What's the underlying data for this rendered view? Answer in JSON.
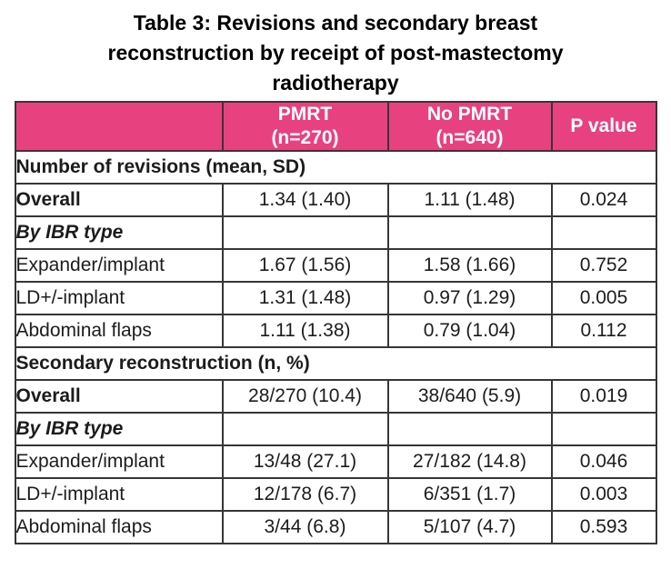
{
  "title_lines": [
    "Table 3: Revisions and secondary breast",
    "reconstruction by receipt of post-mastectomy",
    "radiotherapy"
  ],
  "colors": {
    "header_bg": "#E8417F",
    "header_text": "#FFFFFF",
    "border": "#363636",
    "body_text": "#1C1C1C"
  },
  "table": {
    "header": {
      "row_label_col": "",
      "pmrt_line1": "PMRT",
      "pmrt_line2": "(n=270)",
      "no_pmrt_line1": "No PMRT",
      "no_pmrt_line2": "(n=640)",
      "p_value": "P value"
    },
    "sections": [
      {
        "section_label": "Number of revisions (mean, SD)",
        "rows": [
          {
            "label": "Overall",
            "pmrt": "1.34 (1.40)",
            "no_pmrt": "1.11 (1.48)",
            "p": "0.024"
          },
          {
            "label": "By IBR type",
            "pmrt": "",
            "no_pmrt": "",
            "p": ""
          },
          {
            "label": "Expander/implant",
            "pmrt": "1.67 (1.56)",
            "no_pmrt": "1.58 (1.66)",
            "p": "0.752"
          },
          {
            "label": "LD+/-implant",
            "pmrt": "1.31 (1.48)",
            "no_pmrt": "0.97 (1.29)",
            "p": "0.005"
          },
          {
            "label": "Abdominal flaps",
            "pmrt": "1.11 (1.38)",
            "no_pmrt": "0.79 (1.04)",
            "p": "0.112"
          }
        ]
      },
      {
        "section_label": "Secondary reconstruction (n, %)",
        "rows": [
          {
            "label": "Overall",
            "pmrt": "28/270 (10.4)",
            "no_pmrt": "38/640 (5.9)",
            "p": "0.019"
          },
          {
            "label": "By IBR type",
            "pmrt": "",
            "no_pmrt": "",
            "p": ""
          },
          {
            "label": "Expander/implant",
            "pmrt": "13/48 (27.1)",
            "no_pmrt": "27/182 (14.8)",
            "p": "0.046"
          },
          {
            "label": "LD+/-implant",
            "pmrt": "12/178 (6.7)",
            "no_pmrt": "6/351 (1.7)",
            "p": "0.003"
          },
          {
            "label": "Abdominal flaps",
            "pmrt": "3/44 (6.8)",
            "no_pmrt": "5/107 (4.7)",
            "p": "0.593"
          }
        ]
      }
    ]
  }
}
